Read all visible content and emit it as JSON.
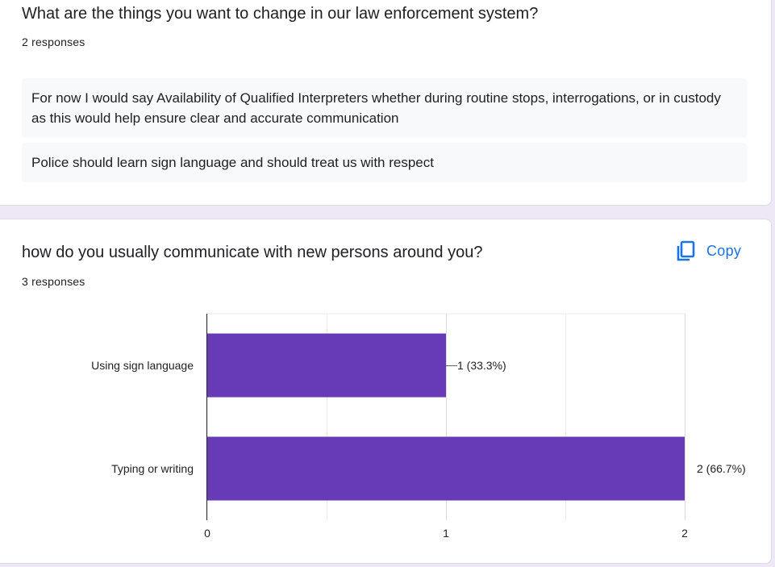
{
  "question1": {
    "title": "What are the things you want to change in our law enforcement system?",
    "response_count": "2 responses",
    "answers": [
      "For now I would say Availability of Qualified Interpreters whether during routine stops, interrogations, or in custody as this would help ensure clear and accurate communication",
      "Police should learn sign language and should treat us with respect"
    ]
  },
  "question2": {
    "title": "how do you usually communicate with new persons around you?",
    "response_count": "3 responses",
    "copy_label": "Copy",
    "copy_icon": "copy-icon"
  },
  "colors": {
    "bar": "#673ab7",
    "accent": "#1a73e8",
    "page_background": "#ede7f6"
  },
  "chart_data": {
    "type": "bar",
    "orientation": "horizontal",
    "categories": [
      "Using sign language",
      "Typing or writing"
    ],
    "values": [
      1,
      2
    ],
    "data_labels": [
      "1 (33.3%)",
      "2 (66.7%)"
    ],
    "x_ticks": [
      "0",
      "1",
      "2"
    ],
    "xlim": [
      0,
      2
    ],
    "grid": true
  }
}
